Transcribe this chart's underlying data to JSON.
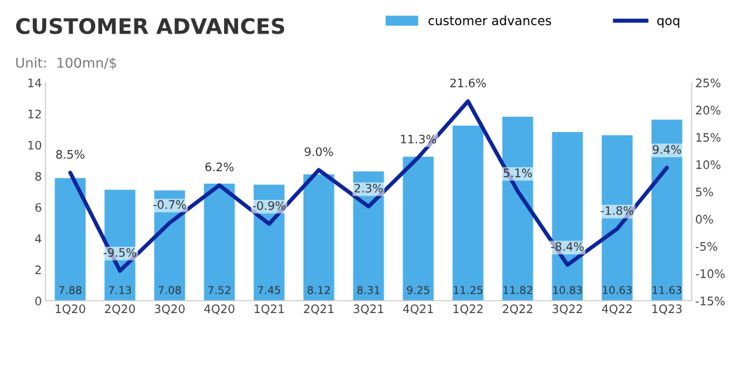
{
  "chart_data": {
    "type": "bar",
    "title": "CUSTOMER ADVANCES",
    "subtitle": "Unit:  100mn/$",
    "categories": [
      "1Q20",
      "2Q20",
      "3Q20",
      "4Q20",
      "1Q21",
      "2Q21",
      "3Q21",
      "4Q21",
      "1Q22",
      "2Q22",
      "3Q22",
      "4Q22",
      "1Q23"
    ],
    "series": [
      {
        "name": "customer advances",
        "color": "#4baee8",
        "values": [
          7.88,
          7.13,
          7.08,
          7.52,
          7.45,
          8.12,
          8.31,
          9.25,
          11.25,
          11.82,
          10.83,
          10.63,
          11.63
        ],
        "value_labels": [
          "7.88",
          "7.13",
          "7.08",
          "7.52",
          "7.45",
          "8.12",
          "8.31",
          "9.25",
          "11.25",
          "11.82",
          "10.83",
          "10.63",
          "11.63"
        ]
      },
      {
        "name": "qoq",
        "type": "line",
        "axis": "y2",
        "color": "#0d259a",
        "values": [
          8.5,
          -9.5,
          -0.7,
          6.2,
          -0.9,
          9.0,
          2.3,
          11.3,
          21.6,
          5.1,
          -8.4,
          -1.8,
          9.4
        ],
        "value_labels": [
          "8.5%",
          "-9.5%",
          "-0.7%",
          "6.2%",
          "-0.9%",
          "9.0%",
          "2.3%",
          "11.3%",
          "21.6%",
          "5.1%",
          "-8.4%",
          "-1.8%",
          "9.4%"
        ]
      }
    ],
    "ylim": [
      0,
      14
    ],
    "yticks": [
      0,
      2,
      4,
      6,
      8,
      10,
      12,
      14
    ],
    "y2lim": [
      -15,
      25
    ],
    "y2ticks": [
      {
        "value": -15,
        "label": "-15%"
      },
      {
        "value": -10,
        "label": "-10%"
      },
      {
        "value": -5,
        "label": "-5%"
      },
      {
        "value": 0,
        "label": "0%"
      },
      {
        "value": 5,
        "label": "5%"
      },
      {
        "value": 10,
        "label": "10%"
      },
      {
        "value": 15,
        "label": "15%"
      },
      {
        "value": 20,
        "label": "20%"
      },
      {
        "value": 25,
        "label": "25%"
      }
    ],
    "legend": "top right",
    "grid": false
  }
}
